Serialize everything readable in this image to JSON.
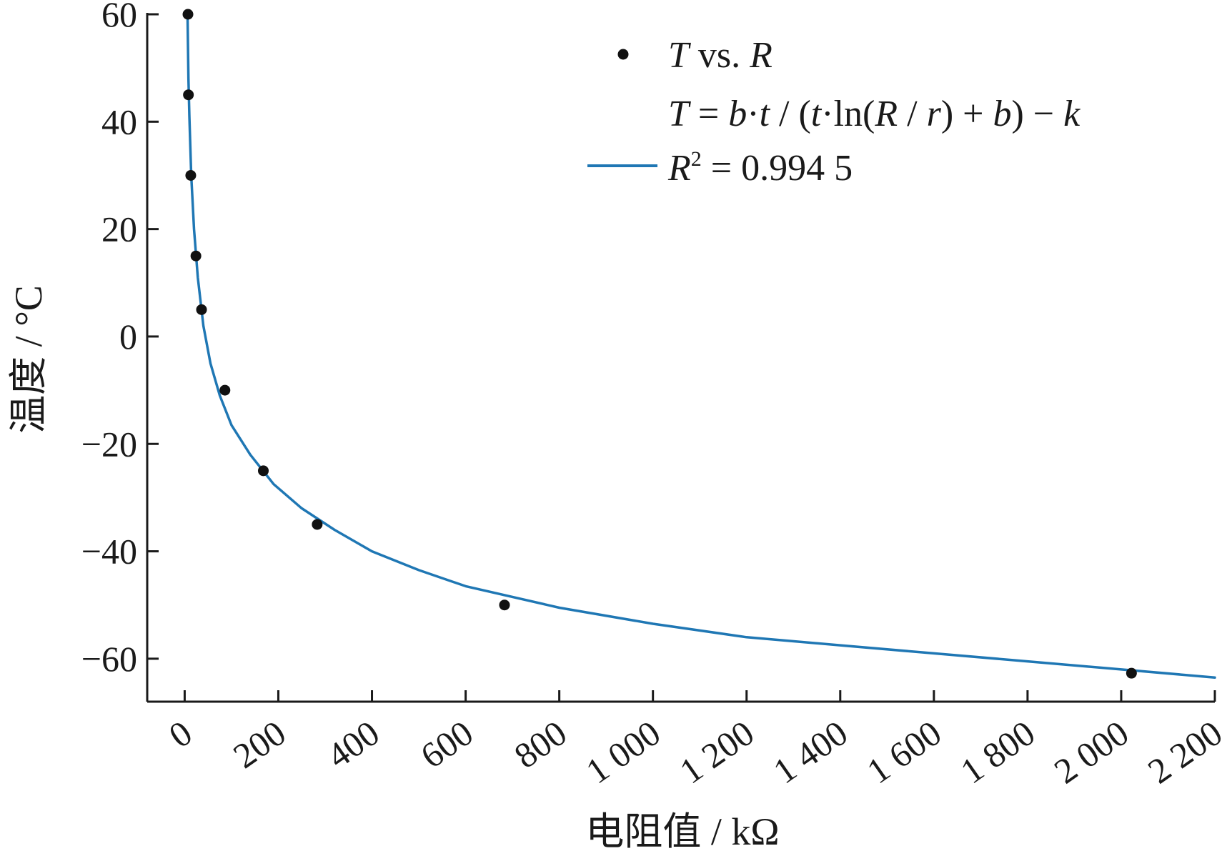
{
  "chart_data": {
    "type": "scatter",
    "xlabel": "电阻值 / kΩ",
    "ylabel": "温度 / °C",
    "xlim": [
      -80,
      2200
    ],
    "ylim": [
      -68,
      60
    ],
    "grid": false,
    "legend_position": "top-right",
    "x_ticks": [
      0,
      200,
      400,
      600,
      800,
      1000,
      1200,
      1400,
      1600,
      1800,
      2000,
      2200
    ],
    "x_tick_labels": [
      "0",
      "200",
      "400",
      "600",
      "800",
      "1 000",
      "1 200",
      "1 400",
      "1 600",
      "1 800",
      "2 000",
      "2 200"
    ],
    "y_ticks": [
      60,
      40,
      20,
      0,
      -20,
      -40,
      -60
    ],
    "y_tick_labels": [
      "60",
      "40",
      "20",
      "0",
      "−20",
      "−40",
      "−60"
    ],
    "series": [
      {
        "name": "T vs. R",
        "kind": "scatter",
        "color": "#111111",
        "points": [
          {
            "x": 7,
            "y": 60
          },
          {
            "x": 8,
            "y": 45
          },
          {
            "x": 13,
            "y": 30
          },
          {
            "x": 24,
            "y": 15
          },
          {
            "x": 36,
            "y": 5
          },
          {
            "x": 86,
            "y": -10
          },
          {
            "x": 168,
            "y": -25
          },
          {
            "x": 283,
            "y": -35
          },
          {
            "x": 683,
            "y": -50
          },
          {
            "x": 2022,
            "y": -62.7
          }
        ]
      },
      {
        "name": "T = b·t / (t·ln(R / r) + b) − k",
        "kind": "line",
        "color": "#1f77b4",
        "points": [
          {
            "x": 6,
            "y": 60
          },
          {
            "x": 8,
            "y": 48
          },
          {
            "x": 10,
            "y": 41
          },
          {
            "x": 14,
            "y": 30
          },
          {
            "x": 20,
            "y": 20
          },
          {
            "x": 28,
            "y": 11
          },
          {
            "x": 40,
            "y": 2
          },
          {
            "x": 55,
            "y": -5
          },
          {
            "x": 75,
            "y": -11
          },
          {
            "x": 100,
            "y": -16.5
          },
          {
            "x": 140,
            "y": -22
          },
          {
            "x": 190,
            "y": -27.5
          },
          {
            "x": 250,
            "y": -32
          },
          {
            "x": 320,
            "y": -36
          },
          {
            "x": 400,
            "y": -40
          },
          {
            "x": 500,
            "y": -43.5
          },
          {
            "x": 600,
            "y": -46.5
          },
          {
            "x": 700,
            "y": -48.5
          },
          {
            "x": 800,
            "y": -50.5
          },
          {
            "x": 1000,
            "y": -53.5
          },
          {
            "x": 1200,
            "y": -56
          },
          {
            "x": 1400,
            "y": -57.5
          },
          {
            "x": 1600,
            "y": -59
          },
          {
            "x": 1800,
            "y": -60.5
          },
          {
            "x": 2000,
            "y": -62
          },
          {
            "x": 2200,
            "y": -63.5
          }
        ]
      }
    ],
    "legend": {
      "scatter_label_T": "T",
      "scatter_label_vs": " vs. ",
      "scatter_label_R": "R",
      "formula": {
        "T": "T",
        "eq1": " = ",
        "b1": "b",
        "dot1": "·",
        "t1": "t",
        "slash1": " / (",
        "t2": "t",
        "dot2": "·ln(",
        "R": "R",
        "slash2": " / ",
        "r": "r",
        "plus": ") + ",
        "b2": "b",
        "close": ") − ",
        "k": "k"
      },
      "r2_R": "R",
      "r2_sup": "2",
      "r2_value": " = 0.994 5"
    }
  }
}
